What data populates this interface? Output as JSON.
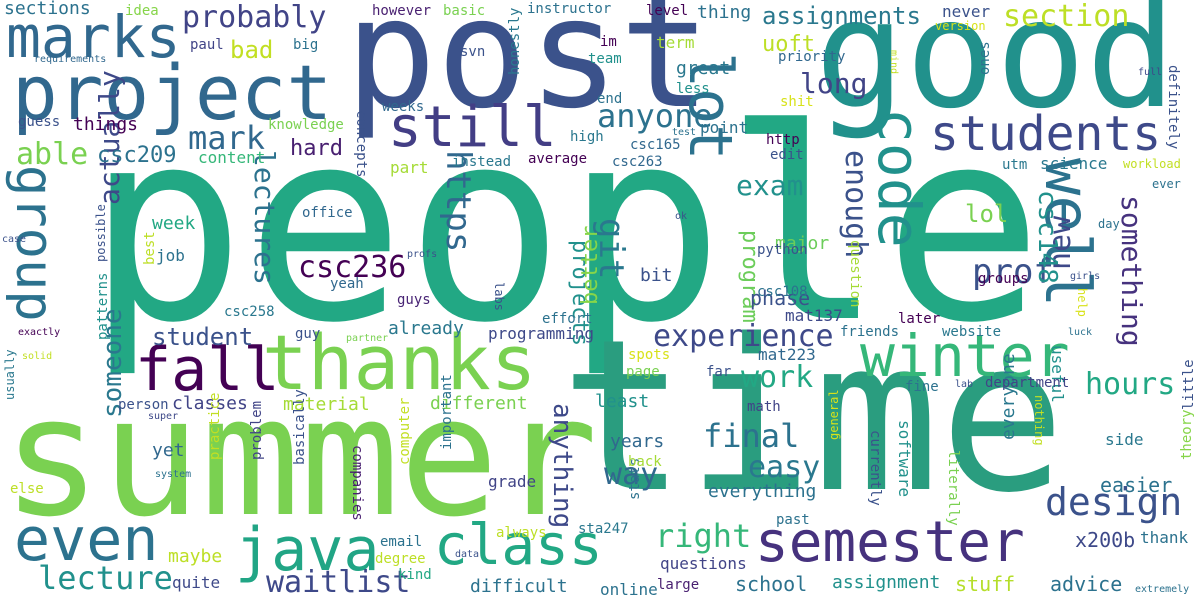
{
  "words": [
    {
      "t": "people",
      "c": "#22a884"
    },
    {
      "t": "time",
      "c": "#2a9d7f"
    },
    {
      "t": "summer",
      "c": "#7ad151"
    },
    {
      "t": "post",
      "c": "#3b528b"
    },
    {
      "t": "good",
      "c": "#21918c"
    },
    {
      "t": "project",
      "c": "#31688e"
    },
    {
      "t": "thanks",
      "c": "#7ad151"
    },
    {
      "t": "winter",
      "c": "#35b779"
    },
    {
      "t": "well",
      "c": "#2c728e"
    },
    {
      "t": "code",
      "c": "#21918c"
    },
    {
      "t": "students",
      "c": "#3e4989"
    },
    {
      "t": "lot",
      "c": "#2c728e"
    },
    {
      "t": "still",
      "c": "#433e85"
    },
    {
      "t": "marks",
      "c": "#31688e"
    },
    {
      "t": "group",
      "c": "#2c728e"
    },
    {
      "t": "fall",
      "c": "#440154"
    },
    {
      "t": "even",
      "c": "#2c728e"
    },
    {
      "t": "java",
      "c": "#21a585"
    },
    {
      "t": "class",
      "c": "#22a884"
    },
    {
      "t": "semester",
      "c": "#46327e"
    },
    {
      "t": "design",
      "c": "#3b528b"
    },
    {
      "t": "experience",
      "c": "#3e4989"
    },
    {
      "t": "probably",
      "c": "#414487"
    },
    {
      "t": "section",
      "c": "#bddf26"
    },
    {
      "t": "assignments",
      "c": "#2a788e"
    },
    {
      "t": "mark",
      "c": "#31688e"
    },
    {
      "t": "anyone",
      "c": "#2c728e"
    },
    {
      "t": "able",
      "c": "#7ad151"
    },
    {
      "t": "actually",
      "c": "#3e4989"
    },
    {
      "t": "csc236",
      "c": "#440154"
    },
    {
      "t": "lectures",
      "c": "#2c728e"
    },
    {
      "t": "https",
      "c": "#31688e"
    },
    {
      "t": "git",
      "c": "#2a788e"
    },
    {
      "t": "exam",
      "c": "#21918c"
    },
    {
      "t": "long",
      "c": "#414487"
    },
    {
      "t": "enough",
      "c": "#3b528b"
    },
    {
      "t": "hours",
      "c": "#22a884"
    },
    {
      "t": "prof",
      "c": "#3b528b"
    },
    {
      "t": "new",
      "c": "#3e4989"
    },
    {
      "t": "something",
      "c": "#46327e"
    },
    {
      "t": "csc148",
      "c": "#21918c"
    },
    {
      "t": "final",
      "c": "#2c728e"
    },
    {
      "t": "easy",
      "c": "#2a788e"
    },
    {
      "t": "way",
      "c": "#31688e"
    },
    {
      "t": "work",
      "c": "#22a884"
    },
    {
      "t": "right",
      "c": "#35b779"
    },
    {
      "t": "lecture",
      "c": "#21918c"
    },
    {
      "t": "waitlist",
      "c": "#3e4989"
    },
    {
      "t": "someone",
      "c": "#2a788e"
    },
    {
      "t": "anything",
      "c": "#3e4989"
    },
    {
      "t": "projects",
      "c": "#21918c"
    },
    {
      "t": "better",
      "c": "#86d549"
    },
    {
      "t": "program",
      "c": "#6ccd5a"
    },
    {
      "t": "student",
      "c": "#3b528b"
    },
    {
      "t": "csc209",
      "c": "#2c728e"
    },
    {
      "t": "hard",
      "c": "#481f70"
    },
    {
      "t": "bad",
      "c": "#c2df23"
    },
    {
      "t": "uoft",
      "c": "#bddf26"
    },
    {
      "t": "lol",
      "c": "#7ad151"
    },
    {
      "t": "phase",
      "c": "#3b528b"
    },
    {
      "t": "x200b",
      "c": "#3e4989"
    },
    {
      "t": "advice",
      "c": "#2c728e"
    },
    {
      "t": "stuff",
      "c": "#b5de2b"
    },
    {
      "t": "easier",
      "c": "#2c728e"
    },
    {
      "t": "school",
      "c": "#2c728e"
    },
    {
      "t": "assignment",
      "c": "#21918c"
    },
    {
      "t": "difficult",
      "c": "#2c728e"
    },
    {
      "t": "different",
      "c": "#7ad151"
    },
    {
      "t": "classes",
      "c": "#414487"
    },
    {
      "t": "material",
      "c": "#a5db36"
    },
    {
      "t": "great",
      "c": "#2a788e"
    },
    {
      "t": "thing",
      "c": "#2c728e"
    },
    {
      "t": "things",
      "c": "#440154"
    },
    {
      "t": "sections",
      "c": "#2c728e"
    },
    {
      "t": "everything",
      "c": "#2c728e"
    },
    {
      "t": "everyone",
      "c": "#2a788e"
    },
    {
      "t": "useful",
      "c": "#21918c"
    },
    {
      "t": "software",
      "c": "#21918c"
    },
    {
      "t": "science",
      "c": "#2a788e"
    },
    {
      "t": "years",
      "c": "#31688e"
    },
    {
      "t": "questions",
      "c": "#414487"
    },
    {
      "t": "grade",
      "c": "#414487"
    },
    {
      "t": "already",
      "c": "#2a788e"
    },
    {
      "t": "programming",
      "c": "#3e4989"
    },
    {
      "t": "week",
      "c": "#22a884"
    },
    {
      "t": "job",
      "c": "#2c728e"
    },
    {
      "t": "content",
      "c": "#35b779"
    },
    {
      "t": "yet",
      "c": "#31688e"
    },
    {
      "t": "maybe",
      "c": "#bddf26"
    },
    {
      "t": "quite",
      "c": "#3e4989"
    },
    {
      "t": "least",
      "c": "#21918c"
    },
    {
      "t": "major",
      "c": "#6ccd5a"
    },
    {
      "t": "bit",
      "c": "#3b528b"
    },
    {
      "t": "csc108",
      "c": "#2c728e"
    },
    {
      "t": "mat137",
      "c": "#3e4989"
    },
    {
      "t": "mat223",
      "c": "#31688e"
    },
    {
      "t": "python",
      "c": "#3b528b"
    },
    {
      "t": "term",
      "c": "#a5db36"
    },
    {
      "t": "priority",
      "c": "#31688e"
    },
    {
      "t": "level",
      "c": "#440154"
    },
    {
      "t": "never",
      "c": "#3b528b"
    },
    {
      "t": "idea",
      "c": "#86d549"
    },
    {
      "t": "however",
      "c": "#481f70"
    },
    {
      "t": "basic",
      "c": "#7ad151"
    },
    {
      "t": "instructor",
      "c": "#2c728e"
    },
    {
      "t": "version",
      "c": "#d8e219"
    },
    {
      "t": "paul",
      "c": "#414487"
    },
    {
      "t": "big",
      "c": "#2c728e"
    },
    {
      "t": "svn",
      "c": "#3b528b"
    },
    {
      "t": "team",
      "c": "#21918c"
    },
    {
      "t": "im",
      "c": "#440154"
    },
    {
      "t": "less",
      "c": "#21918c"
    },
    {
      "t": "end",
      "c": "#2c728e"
    },
    {
      "t": "high",
      "c": "#2a788e"
    },
    {
      "t": "csc165",
      "c": "#31688e"
    },
    {
      "t": "csc263",
      "c": "#31688e"
    },
    {
      "t": "instead",
      "c": "#2a788e"
    },
    {
      "t": "average",
      "c": "#440154"
    },
    {
      "t": "part",
      "c": "#a5db36"
    },
    {
      "t": "point",
      "c": "#2c728e"
    },
    {
      "t": "edit",
      "c": "#3b528b"
    },
    {
      "t": "http",
      "c": "#440154"
    },
    {
      "t": "shit",
      "c": "#d8e219"
    },
    {
      "t": "utm",
      "c": "#2a788e"
    },
    {
      "t": "workload",
      "c": "#c2df23"
    },
    {
      "t": "ever",
      "c": "#2c728e"
    },
    {
      "t": "day",
      "c": "#2c728e"
    },
    {
      "t": "ones",
      "c": "#2c728e"
    },
    {
      "t": "definitely",
      "c": "#3b528b"
    },
    {
      "t": "full",
      "c": "#3e4989"
    },
    {
      "t": "mind",
      "c": "#c2df23"
    },
    {
      "t": "weeks",
      "c": "#31688e"
    },
    {
      "t": "guess",
      "c": "#3b528b"
    },
    {
      "t": "knowledge",
      "c": "#7ad151"
    },
    {
      "t": "concepts",
      "c": "#3b528b"
    },
    {
      "t": "honestly",
      "c": "#2a788e"
    },
    {
      "t": "requirements",
      "c": "#31688e"
    },
    {
      "t": "office",
      "c": "#31688e"
    },
    {
      "t": "best",
      "c": "#bddf26"
    },
    {
      "t": "yeah",
      "c": "#31688e"
    },
    {
      "t": "profs",
      "c": "#3b528b"
    },
    {
      "t": "labs",
      "c": "#3b528b"
    },
    {
      "t": "guys",
      "c": "#482475"
    },
    {
      "t": "csc258",
      "c": "#2a788e"
    },
    {
      "t": "question",
      "c": "#a5db36"
    },
    {
      "t": "groups",
      "c": "#440154"
    },
    {
      "t": "later",
      "c": "#440154"
    },
    {
      "t": "website",
      "c": "#2a788e"
    },
    {
      "t": "friends",
      "c": "#2c728e"
    },
    {
      "t": "girls",
      "c": "#3b528b"
    },
    {
      "t": "help",
      "c": "#d8e219"
    },
    {
      "t": "luck",
      "c": "#2c728e"
    },
    {
      "t": "guy",
      "c": "#3b528b"
    },
    {
      "t": "partner",
      "c": "#7ad151"
    },
    {
      "t": "effort",
      "c": "#2c728e"
    },
    {
      "t": "spots",
      "c": "#d8e219"
    },
    {
      "t": "page",
      "c": "#7ad151"
    },
    {
      "t": "far",
      "c": "#3b528b"
    },
    {
      "t": "fine",
      "c": "#2c728e"
    },
    {
      "t": "department",
      "c": "#414487"
    },
    {
      "t": "lab",
      "c": "#3b528b"
    },
    {
      "t": "math",
      "c": "#414487"
    },
    {
      "t": "person",
      "c": "#3b528b"
    },
    {
      "t": "patterns",
      "c": "#21918c"
    },
    {
      "t": "exactly",
      "c": "#440154"
    },
    {
      "t": "possible",
      "c": "#3b528b"
    },
    {
      "t": "case",
      "c": "#3b528b"
    },
    {
      "t": "solid",
      "c": "#c2df23"
    },
    {
      "t": "usually",
      "c": "#2a788e"
    },
    {
      "t": "super",
      "c": "#3e4989"
    },
    {
      "t": "system",
      "c": "#2c728e"
    },
    {
      "t": "else",
      "c": "#bddf26"
    },
    {
      "t": "practice",
      "c": "#c2df23"
    },
    {
      "t": "problem",
      "c": "#414487"
    },
    {
      "t": "basically",
      "c": "#3b528b"
    },
    {
      "t": "companies",
      "c": "#481f70"
    },
    {
      "t": "computer",
      "c": "#c2df23"
    },
    {
      "t": "important",
      "c": "#2c728e"
    },
    {
      "t": "email",
      "c": "#2c728e"
    },
    {
      "t": "degree",
      "c": "#bddf26"
    },
    {
      "t": "kind",
      "c": "#22a884"
    },
    {
      "t": "always",
      "c": "#bddf26"
    },
    {
      "t": "data",
      "c": "#3b528b"
    },
    {
      "t": "online",
      "c": "#2c728e"
    },
    {
      "t": "large",
      "c": "#481f70"
    },
    {
      "t": "sta247",
      "c": "#2a788e"
    },
    {
      "t": "stats",
      "c": "#2c728e"
    },
    {
      "t": "back",
      "c": "#a5db36"
    },
    {
      "t": "general",
      "c": "#d8e219"
    },
    {
      "t": "past",
      "c": "#2c728e"
    },
    {
      "t": "currently",
      "c": "#3b528b"
    },
    {
      "t": "literally",
      "c": "#7ad151"
    },
    {
      "t": "thank",
      "c": "#2c728e"
    },
    {
      "t": "side",
      "c": "#2a788e"
    },
    {
      "t": "nothing",
      "c": "#c2df23"
    },
    {
      "t": "theory",
      "c": "#86d549"
    },
    {
      "t": "little",
      "c": "#3b528b"
    },
    {
      "t": "extremely",
      "c": "#2c728e"
    },
    {
      "t": "ok",
      "c": "#3b528b"
    },
    {
      "t": "test",
      "c": "#2c728e"
    }
  ]
}
